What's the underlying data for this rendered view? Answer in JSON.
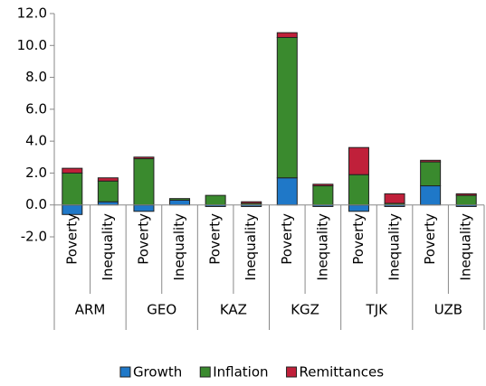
{
  "chart_data": {
    "type": "bar",
    "stacked": true,
    "groups": [
      "ARM",
      "GEO",
      "KAZ",
      "KGZ",
      "TJK",
      "UZB"
    ],
    "categories": [
      "Poverty",
      "Inequality",
      "Poverty",
      "Inequality",
      "Poverty",
      "Inequality",
      "Poverty",
      "Inequality",
      "Poverty",
      "Inequality",
      "Poverty",
      "Inequality"
    ],
    "series": [
      {
        "name": "Growth",
        "color": "#1f78c8",
        "values": [
          -0.6,
          0.2,
          -0.4,
          0.3,
          -0.1,
          -0.1,
          1.7,
          -0.1,
          -0.4,
          -0.1,
          1.2,
          -0.1
        ]
      },
      {
        "name": "Inflation",
        "color": "#3a8a2e",
        "values": [
          2.0,
          1.3,
          2.9,
          0.1,
          0.6,
          0.1,
          8.8,
          1.2,
          1.9,
          0.1,
          1.5,
          0.6
        ]
      },
      {
        "name": "Remittances",
        "color": "#c0203a",
        "values": [
          0.3,
          0.2,
          0.1,
          0.0,
          0.0,
          0.1,
          0.3,
          0.1,
          1.7,
          0.6,
          0.1,
          0.1
        ]
      }
    ],
    "ylim": [
      -2,
      12
    ],
    "yticks": [
      {
        "value": -2,
        "label": "-2.0"
      },
      {
        "value": 0,
        "label": "0.0"
      },
      {
        "value": 2,
        "label": "2.0"
      },
      {
        "value": 4,
        "label": "4.0"
      },
      {
        "value": 6,
        "label": "6.0"
      },
      {
        "value": 8,
        "label": "8.0"
      },
      {
        "value": 10,
        "label": "10.0"
      },
      {
        "value": 12,
        "label": "12.0"
      }
    ],
    "legend": "bottom"
  }
}
